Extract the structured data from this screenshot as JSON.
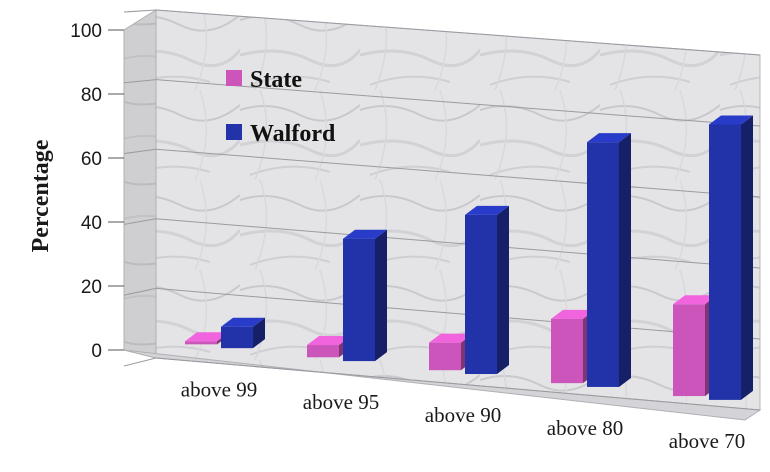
{
  "chart_data": {
    "type": "bar",
    "title": "",
    "xlabel": "",
    "ylabel": "Percentage",
    "ylim": [
      0,
      100
    ],
    "yticks": [
      0,
      20,
      40,
      60,
      80,
      100
    ],
    "grid": true,
    "legend_position": "top-left",
    "style": "3d-clustered-column",
    "categories": [
      "above 99",
      "above 95",
      "above 90",
      "above 80",
      "above 70"
    ],
    "series": [
      {
        "name": "State",
        "color": "#cc55bb",
        "values": [
          1,
          4,
          9,
          21,
          30
        ]
      },
      {
        "name": "Walford",
        "color": "#2233aa",
        "values": [
          7,
          40,
          52,
          80,
          90
        ]
      }
    ]
  }
}
